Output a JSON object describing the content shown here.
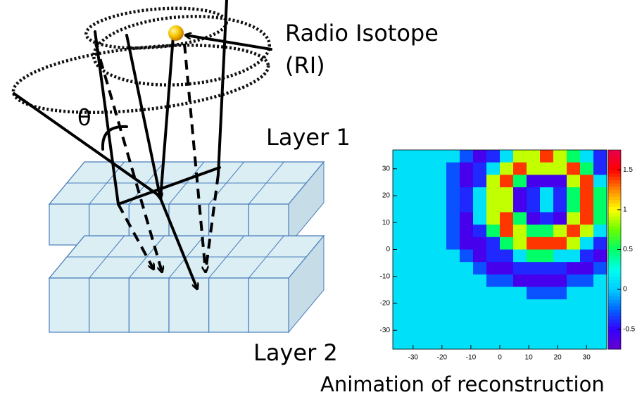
{
  "diagram": {
    "ri_label": "Radio Isotope",
    "ri_abbrev": "(RI)",
    "angle": "θ",
    "layer1": "Layer 1",
    "layer2": "Layer 2",
    "caption": "Animation of reconstruction"
  },
  "heatmap": {
    "type": "heatmap",
    "xlim": [
      -37,
      37
    ],
    "ylim": [
      -37,
      37
    ],
    "xticks": [
      -30,
      -20,
      -10,
      0,
      10,
      20,
      30
    ],
    "yticks": [
      30,
      20,
      10,
      0,
      -10,
      -20,
      -30
    ],
    "zlim": [
      -0.75,
      1.75
    ],
    "zticks": [
      1.5,
      1,
      0.5,
      0,
      -0.5
    ],
    "colormap": [
      "#6600cc",
      "#3300ff",
      "#0066ff",
      "#00ccff",
      "#00ffee",
      "#00ff66",
      "#66ff00",
      "#ffff00",
      "#ff8800",
      "#ff0000",
      "#e6004d"
    ],
    "cells": [
      [
        0.1,
        0.1,
        0.1,
        0.1,
        0.1,
        -0.3,
        -0.6,
        -0.4,
        0.1,
        0.9,
        0.9,
        1.4,
        0.9,
        0.5,
        0.1,
        -0.4
      ],
      [
        0.1,
        0.1,
        0.1,
        0.1,
        -0.3,
        -0.6,
        -0.4,
        0.1,
        0.9,
        1.4,
        0.9,
        0.9,
        0.9,
        1.4,
        0.5,
        -0.4
      ],
      [
        0.1,
        0.1,
        0.1,
        0.1,
        -0.3,
        -0.6,
        -0.4,
        0.9,
        1.4,
        0.5,
        -0.6,
        -0.6,
        -0.6,
        0.9,
        1.4,
        0.1
      ],
      [
        0.1,
        0.1,
        0.1,
        0.1,
        -0.3,
        -0.4,
        0.1,
        0.9,
        0.9,
        -0.6,
        -0.4,
        0.1,
        -0.4,
        0.5,
        1.4,
        0.5
      ],
      [
        0.1,
        0.1,
        0.1,
        0.1,
        -0.3,
        -0.4,
        0.1,
        0.9,
        0.9,
        -0.6,
        -0.4,
        0.1,
        -0.4,
        0.5,
        1.4,
        0.5
      ],
      [
        0.1,
        0.1,
        0.1,
        0.1,
        -0.3,
        -0.6,
        0.1,
        0.9,
        1.4,
        0.5,
        -0.6,
        -0.4,
        -0.6,
        0.9,
        1.4,
        0.5
      ],
      [
        0.1,
        0.1,
        0.1,
        0.1,
        -0.3,
        -0.6,
        -0.4,
        0.5,
        1.4,
        0.9,
        0.5,
        0.5,
        0.9,
        1.4,
        0.9,
        0.1
      ],
      [
        0.1,
        0.1,
        0.1,
        0.1,
        -0.3,
        -0.6,
        -0.6,
        -0.4,
        0.5,
        0.9,
        1.4,
        1.4,
        1.4,
        0.9,
        0.1,
        -0.4
      ],
      [
        0.1,
        0.1,
        0.1,
        0.1,
        0.1,
        -0.3,
        -0.6,
        -0.4,
        -0.4,
        0.1,
        0.5,
        0.5,
        0.1,
        0.1,
        -0.4,
        -0.6
      ],
      [
        0.1,
        0.1,
        0.1,
        0.1,
        0.1,
        0.1,
        -0.3,
        -0.6,
        -0.6,
        -0.4,
        -0.4,
        -0.4,
        -0.4,
        -0.6,
        -0.6,
        -0.3
      ],
      [
        0.1,
        0.1,
        0.1,
        0.1,
        0.1,
        0.1,
        0.1,
        -0.3,
        -0.3,
        -0.6,
        -0.6,
        -0.6,
        -0.6,
        -0.3,
        -0.3,
        0.1
      ],
      [
        0.1,
        0.1,
        0.1,
        0.1,
        0.1,
        0.1,
        0.1,
        0.1,
        0.1,
        0.1,
        -0.3,
        -0.3,
        -0.3,
        0.1,
        0.1,
        0.1
      ],
      [
        0.1,
        0.1,
        0.1,
        0.1,
        0.1,
        0.1,
        0.1,
        0.1,
        0.1,
        0.1,
        0.1,
        0.1,
        0.1,
        0.1,
        0.1,
        0.1
      ],
      [
        0.1,
        0.1,
        0.1,
        0.1,
        0.1,
        0.1,
        0.1,
        0.1,
        0.1,
        0.1,
        0.1,
        0.1,
        0.1,
        0.1,
        0.1,
        0.1
      ],
      [
        0.1,
        0.1,
        0.1,
        0.1,
        0.1,
        0.1,
        0.1,
        0.1,
        0.1,
        0.1,
        0.1,
        0.1,
        0.1,
        0.1,
        0.1,
        0.1
      ],
      [
        0.1,
        0.1,
        0.1,
        0.1,
        0.1,
        0.1,
        0.1,
        0.1,
        0.1,
        0.1,
        0.1,
        0.1,
        0.1,
        0.1,
        0.1,
        0.1
      ]
    ]
  }
}
